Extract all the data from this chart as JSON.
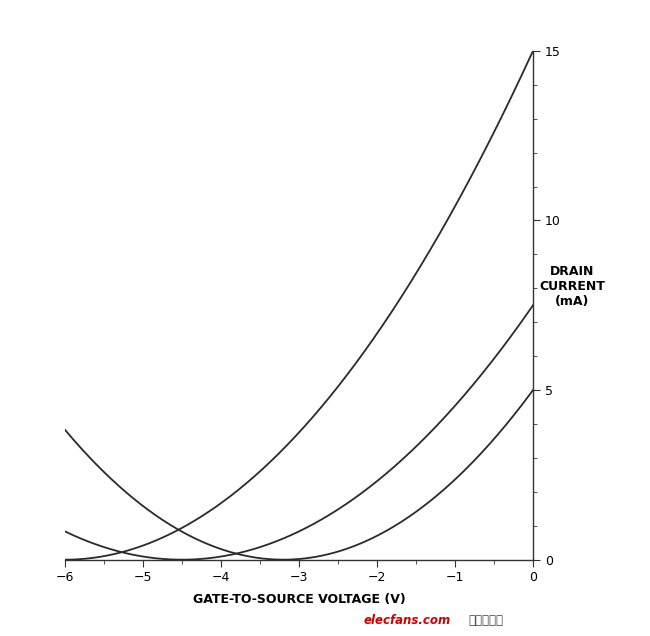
{
  "title": "",
  "xlabel": "GATE-TO-SOURCE VOLTAGE (V)",
  "ylabel_line1": "DRAIN",
  "ylabel_line2": "CURRENT",
  "ylabel_line3": "(mA)",
  "xlim": [
    -6,
    0
  ],
  "ylim": [
    0,
    15
  ],
  "xticks": [
    -6,
    -5,
    -4,
    -3,
    -2,
    -1,
    0
  ],
  "yticks": [
    0,
    5,
    10,
    15
  ],
  "background_color": "#ffffff",
  "line_color": "#2a2a2a",
  "curves": [
    {
      "Idss": 15.0,
      "Vp": -6.0
    },
    {
      "Idss": 7.5,
      "Vp": -4.5
    },
    {
      "Idss": 5.0,
      "Vp": -3.2
    }
  ],
  "xlabel_fontsize": 9,
  "ylabel_fontsize": 9,
  "tick_fontsize": 9,
  "linewidth": 1.3,
  "border_color": "#333333",
  "watermark_color_1": "#cc0000",
  "watermark_color_2": "#444444"
}
